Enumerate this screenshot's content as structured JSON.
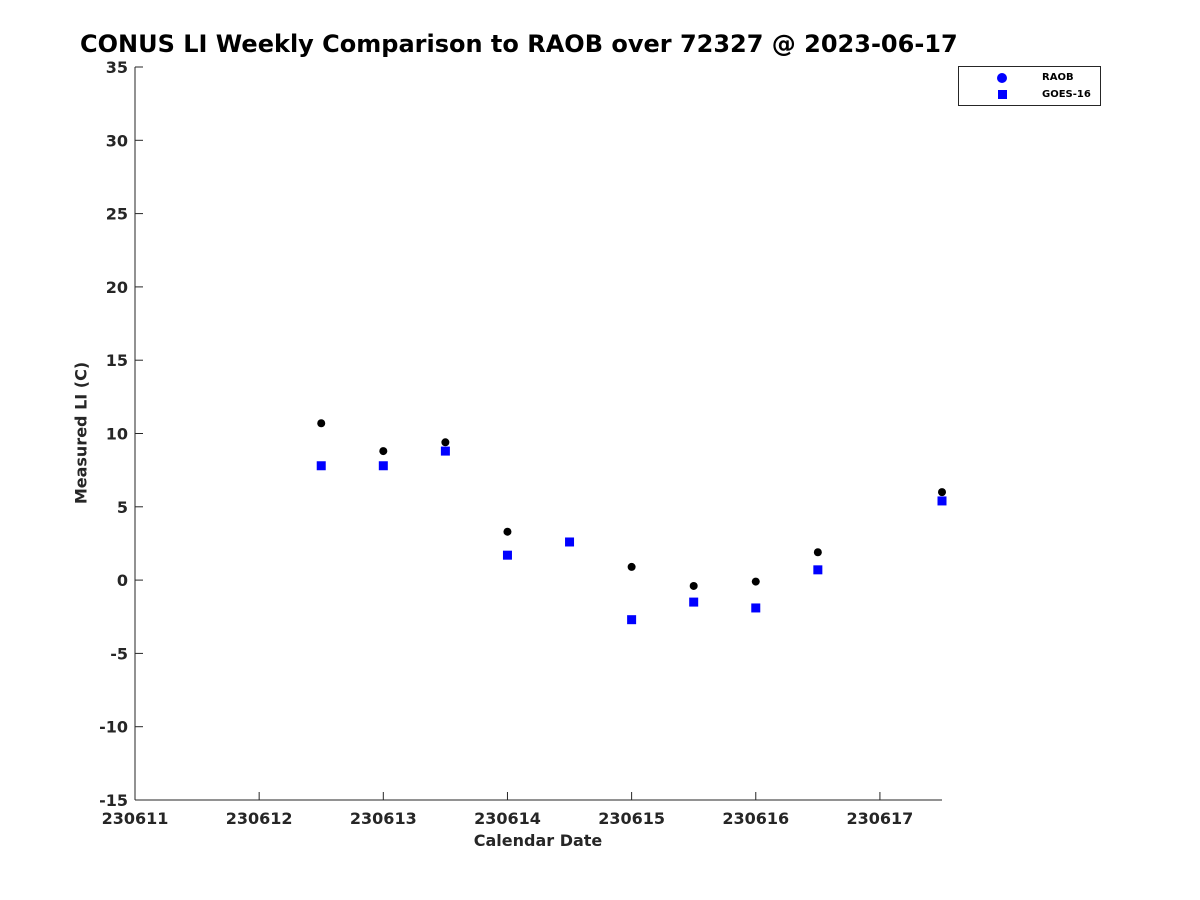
{
  "chart_data": {
    "type": "scatter",
    "title": "CONUS LI Weekly Comparison to RAOB over 72327 @ 2023-06-17",
    "xlabel": "Calendar Date",
    "ylabel": "Measured LI (C)",
    "xlim": [
      230611,
      230617.5
    ],
    "ylim": [
      -15,
      35
    ],
    "xticks": [
      230611,
      230612,
      230613,
      230614,
      230615,
      230616,
      230617
    ],
    "xtick_labels": [
      "230611",
      "230612",
      "230613",
      "230614",
      "230615",
      "230616",
      "230617"
    ],
    "yticks": [
      -15,
      -10,
      -5,
      0,
      5,
      10,
      15,
      20,
      25,
      30,
      35
    ],
    "ytick_labels": [
      "-15",
      "-10",
      "-5",
      "0",
      "5",
      "10",
      "15",
      "20",
      "25",
      "30",
      "35"
    ],
    "legend_position": "top-right",
    "series": [
      {
        "name": "RAOB",
        "marker": "circle",
        "color": "#000000",
        "legend_color": "#0000ff",
        "x": [
          230612.5,
          230613,
          230613.5,
          230614,
          230614.5,
          230615,
          230615.5,
          230616,
          230616.5,
          230617.5
        ],
        "y": [
          10.7,
          8.8,
          9.4,
          3.3,
          2.6,
          0.9,
          -0.4,
          -0.1,
          1.9,
          6.0
        ]
      },
      {
        "name": "GOES-16",
        "marker": "square",
        "color": "#0000ff",
        "legend_color": "#0000ff",
        "x": [
          230612.5,
          230613,
          230613.5,
          230614,
          230614.5,
          230615,
          230615.5,
          230616,
          230616.5,
          230617.5
        ],
        "y": [
          7.8,
          7.8,
          8.8,
          1.7,
          2.6,
          -2.7,
          -1.5,
          -1.9,
          0.7,
          5.4
        ]
      }
    ]
  }
}
